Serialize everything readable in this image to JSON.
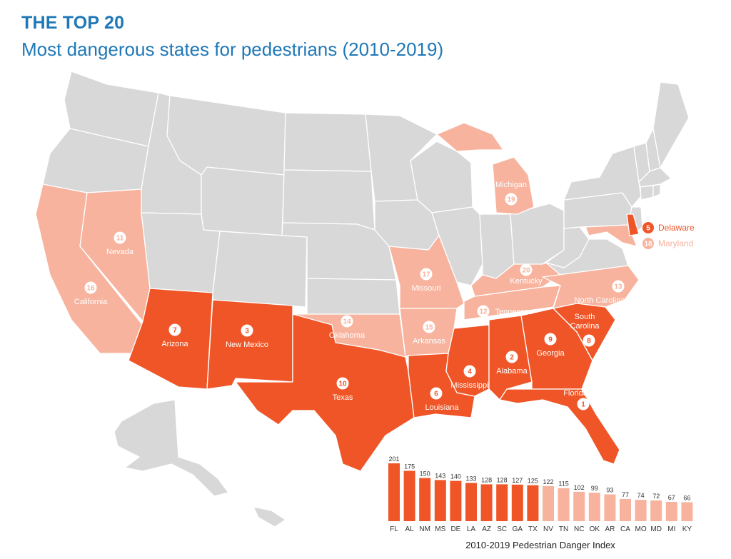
{
  "header": {
    "title": "THE TOP 20",
    "subtitle": "Most dangerous states for pedestrians (2010-2019)"
  },
  "colors": {
    "top10": "#ef5526",
    "rank11to20": "#f7b39d",
    "other": "#d8d8d8",
    "border": "#ffffff",
    "title": "#1f78b8"
  },
  "map_labels": [
    {
      "id": "florida",
      "name": "Florida",
      "rank": "1",
      "tier": "top10"
    },
    {
      "id": "alabama",
      "name": "Alabama",
      "rank": "2",
      "tier": "top10"
    },
    {
      "id": "new-mexico",
      "name": "New Mexico",
      "rank": "3",
      "tier": "top10"
    },
    {
      "id": "mississippi",
      "name": "Mississippi",
      "rank": "4",
      "tier": "top10"
    },
    {
      "id": "delaware",
      "name": "Delaware",
      "rank": "5",
      "tier": "top10"
    },
    {
      "id": "louisiana",
      "name": "Louisiana",
      "rank": "6",
      "tier": "top10"
    },
    {
      "id": "arizona",
      "name": "Arizona",
      "rank": "7",
      "tier": "top10"
    },
    {
      "id": "south-carolina",
      "name": "South Carolina",
      "rank": "8",
      "tier": "top10"
    },
    {
      "id": "georgia",
      "name": "Georgia",
      "rank": "9",
      "tier": "top10"
    },
    {
      "id": "texas",
      "name": "Texas",
      "rank": "10",
      "tier": "top10"
    },
    {
      "id": "nevada",
      "name": "Nevada",
      "rank": "11",
      "tier": "rank11to20"
    },
    {
      "id": "tennessee",
      "name": "Tennessee",
      "rank": "12",
      "tier": "rank11to20"
    },
    {
      "id": "north-carolina",
      "name": "North Carolina",
      "rank": "13",
      "tier": "rank11to20"
    },
    {
      "id": "oklahoma",
      "name": "Oklahoma",
      "rank": "14",
      "tier": "rank11to20"
    },
    {
      "id": "arkansas",
      "name": "Arkansas",
      "rank": "15",
      "tier": "rank11to20"
    },
    {
      "id": "california",
      "name": "California",
      "rank": "16",
      "tier": "rank11to20"
    },
    {
      "id": "missouri",
      "name": "Missouri",
      "rank": "17",
      "tier": "rank11to20"
    },
    {
      "id": "maryland",
      "name": "Maryland",
      "rank": "18",
      "tier": "rank11to20"
    },
    {
      "id": "michigan",
      "name": "Michigan",
      "rank": "19",
      "tier": "rank11to20"
    },
    {
      "id": "kentucky",
      "name": "Kentucky",
      "rank": "20",
      "tier": "rank11to20"
    }
  ],
  "chart_data": {
    "type": "bar",
    "title": "",
    "xlabel": "2010-2019 Pedestrian Danger Index",
    "ylabel": "",
    "categories": [
      "FL",
      "AL",
      "NM",
      "MS",
      "DE",
      "LA",
      "AZ",
      "SC",
      "GA",
      "TX",
      "NV",
      "TN",
      "NC",
      "OK",
      "AR",
      "CA",
      "MO",
      "MD",
      "MI",
      "KY"
    ],
    "values": [
      201,
      175,
      150,
      143,
      140,
      133,
      128,
      128,
      127,
      125,
      122,
      115,
      102,
      99,
      93,
      77,
      74,
      72,
      67,
      66
    ],
    "value_labels": [
      "201",
      "175",
      "150",
      "143",
      "140",
      "133",
      "128",
      "128",
      "127",
      "125",
      "122",
      "115",
      "102",
      "99",
      "93",
      "77",
      "74",
      "72",
      "67",
      "66"
    ],
    "tiers": [
      "top10",
      "top10",
      "top10",
      "top10",
      "top10",
      "top10",
      "top10",
      "top10",
      "top10",
      "top10",
      "rank11to20",
      "rank11to20",
      "rank11to20",
      "rank11to20",
      "rank11to20",
      "rank11to20",
      "rank11to20",
      "rank11to20",
      "rank11to20",
      "rank11to20"
    ],
    "ylim": [
      0,
      201
    ]
  }
}
